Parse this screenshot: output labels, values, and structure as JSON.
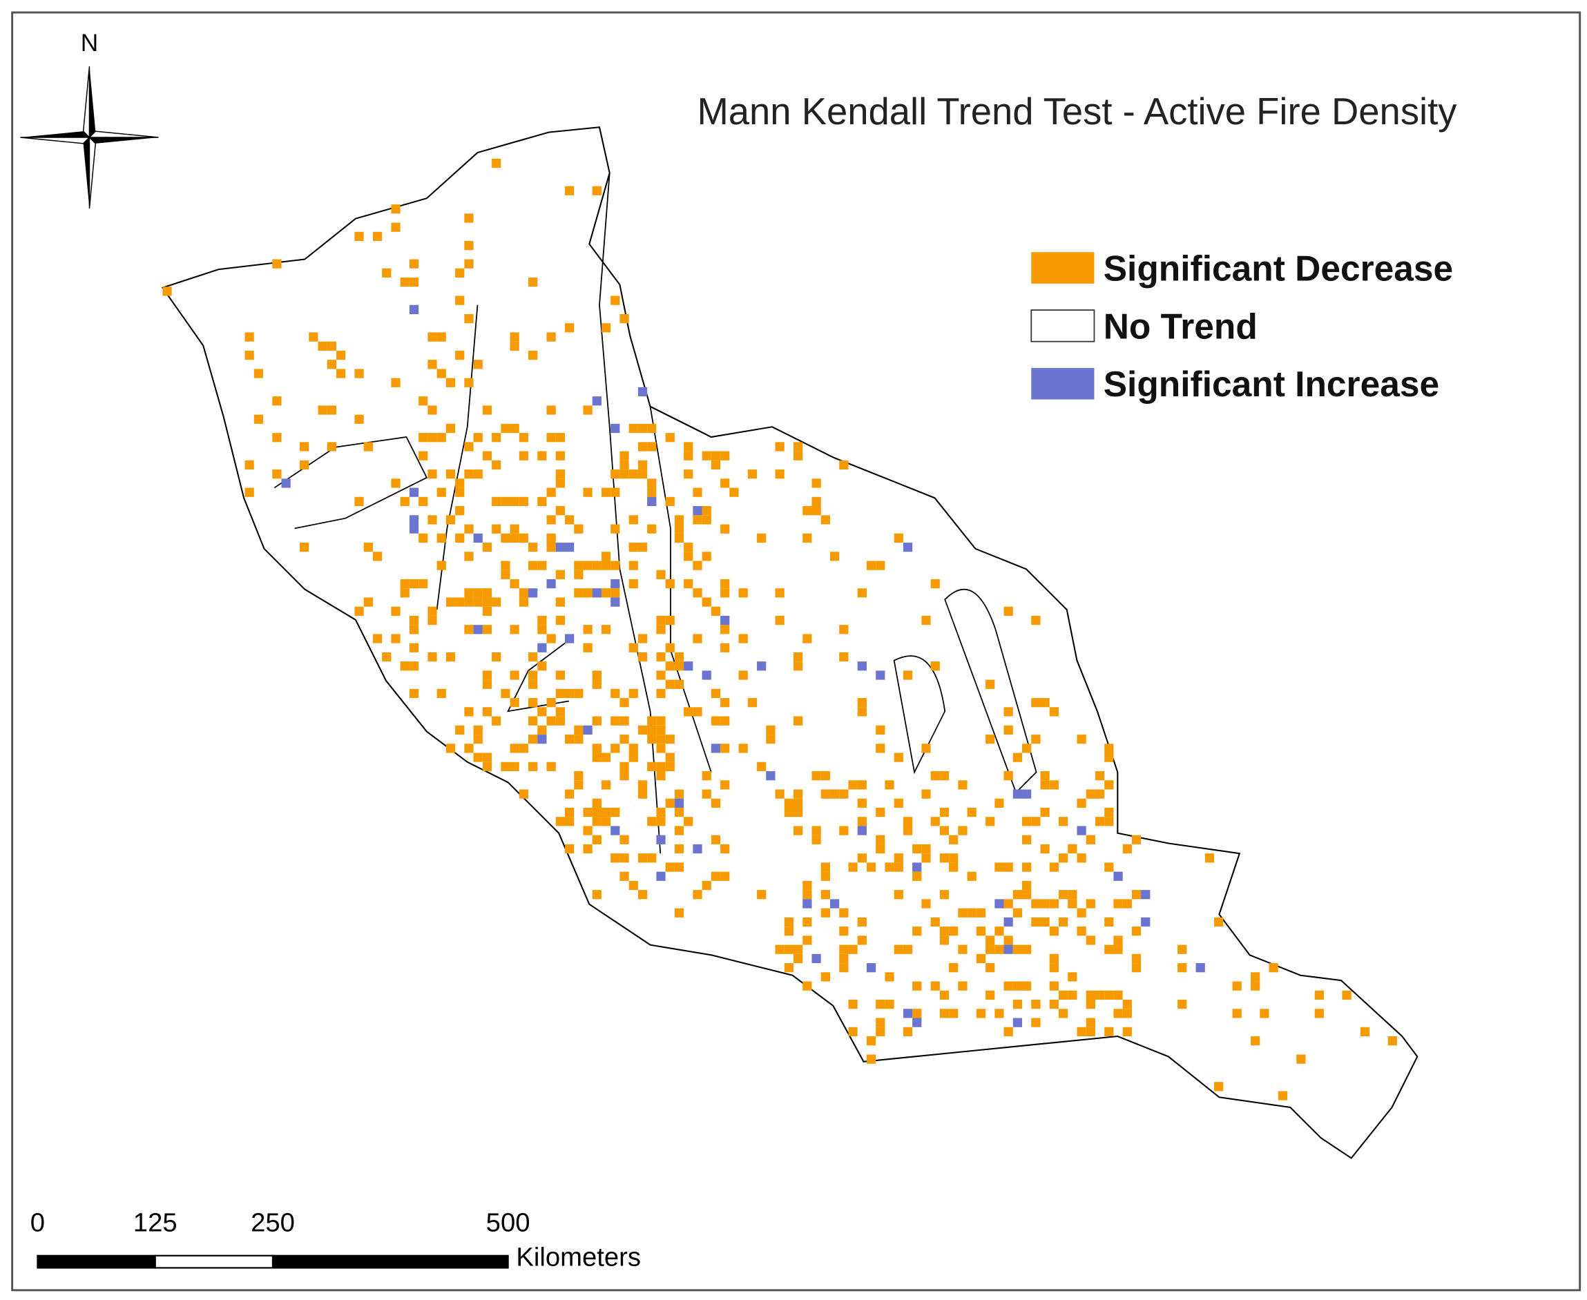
{
  "title": "Mann Kendall Trend Test - Active Fire Density",
  "north_label": "N",
  "legend": [
    {
      "label": "Significant Decrease",
      "color": "#f59a00"
    },
    {
      "label": "No Trend",
      "color": "#ffffff"
    },
    {
      "label": "Significant Increase",
      "color": "#6b74cf"
    }
  ],
  "scale_bar": {
    "ticks": [
      0,
      125,
      250,
      500
    ],
    "unit": "Kilometers"
  }
}
